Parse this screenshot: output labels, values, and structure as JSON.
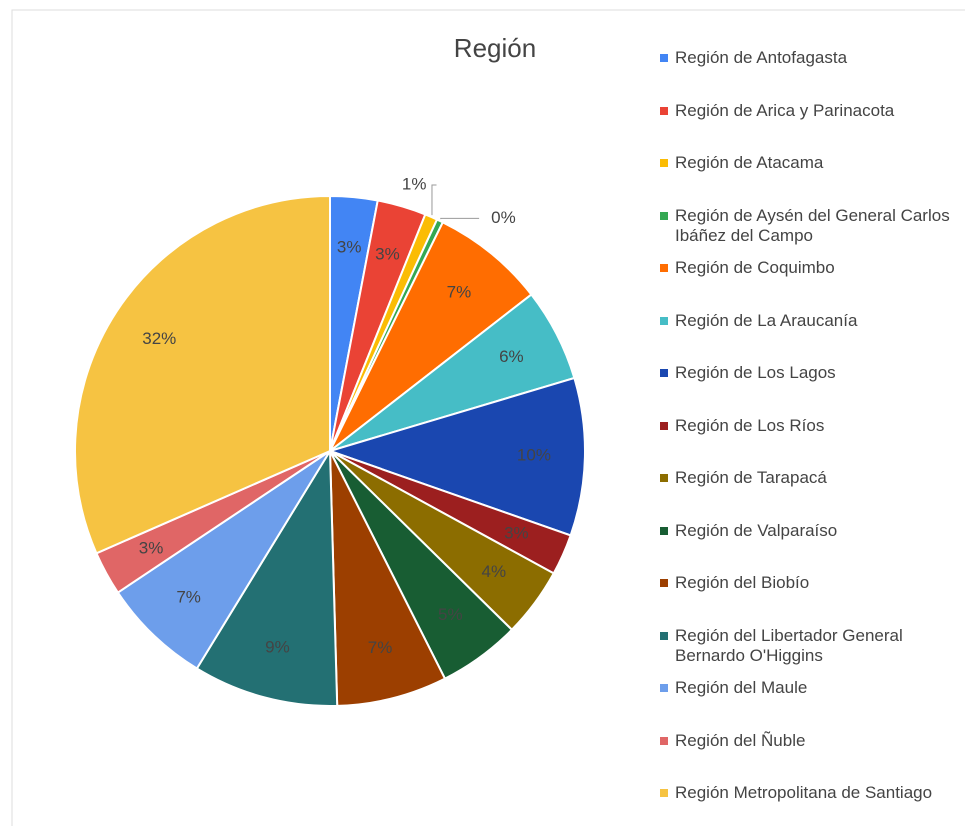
{
  "chart_data": {
    "type": "pie",
    "title": "Región",
    "categories": [
      "Región de Antofagasta",
      "Región de Arica y Parinacota",
      "Región de Atacama",
      "Región de Aysén del General Carlos Ibáñez del Campo",
      "Región de Coquimbo",
      "Región de La Araucanía",
      "Región de Los Lagos",
      "Región de Los Ríos",
      "Región de Tarapacá",
      "Región de Valparaíso",
      "Región del Biobío",
      "Región del Libertador General Bernardo O'Higgins",
      "Región del Maule",
      "Región del Ñuble",
      "Región Metropolitana de Santiago"
    ],
    "values": [
      3.0,
      3.1,
      0.8,
      0.4,
      7.2,
      5.9,
      10.0,
      2.6,
      4.4,
      5.2,
      7.0,
      9.2,
      6.9,
      2.8,
      31.6
    ],
    "value_labels": [
      "3%",
      "3%",
      "1%",
      "0%",
      "7%",
      "6%",
      "10%",
      "3%",
      "4%",
      "5%",
      "7%",
      "9%",
      "7%",
      "3%",
      "32%"
    ],
    "colors": [
      "#4285f4",
      "#ea4335",
      "#fbbc04",
      "#34a853",
      "#ff6d01",
      "#46bdc6",
      "#1a47b0",
      "#9c1f1f",
      "#8c6d00",
      "#185d33",
      "#9c3f00",
      "#237073",
      "#6d9eeb",
      "#e06666",
      "#f6c342"
    ],
    "legend": "right"
  }
}
